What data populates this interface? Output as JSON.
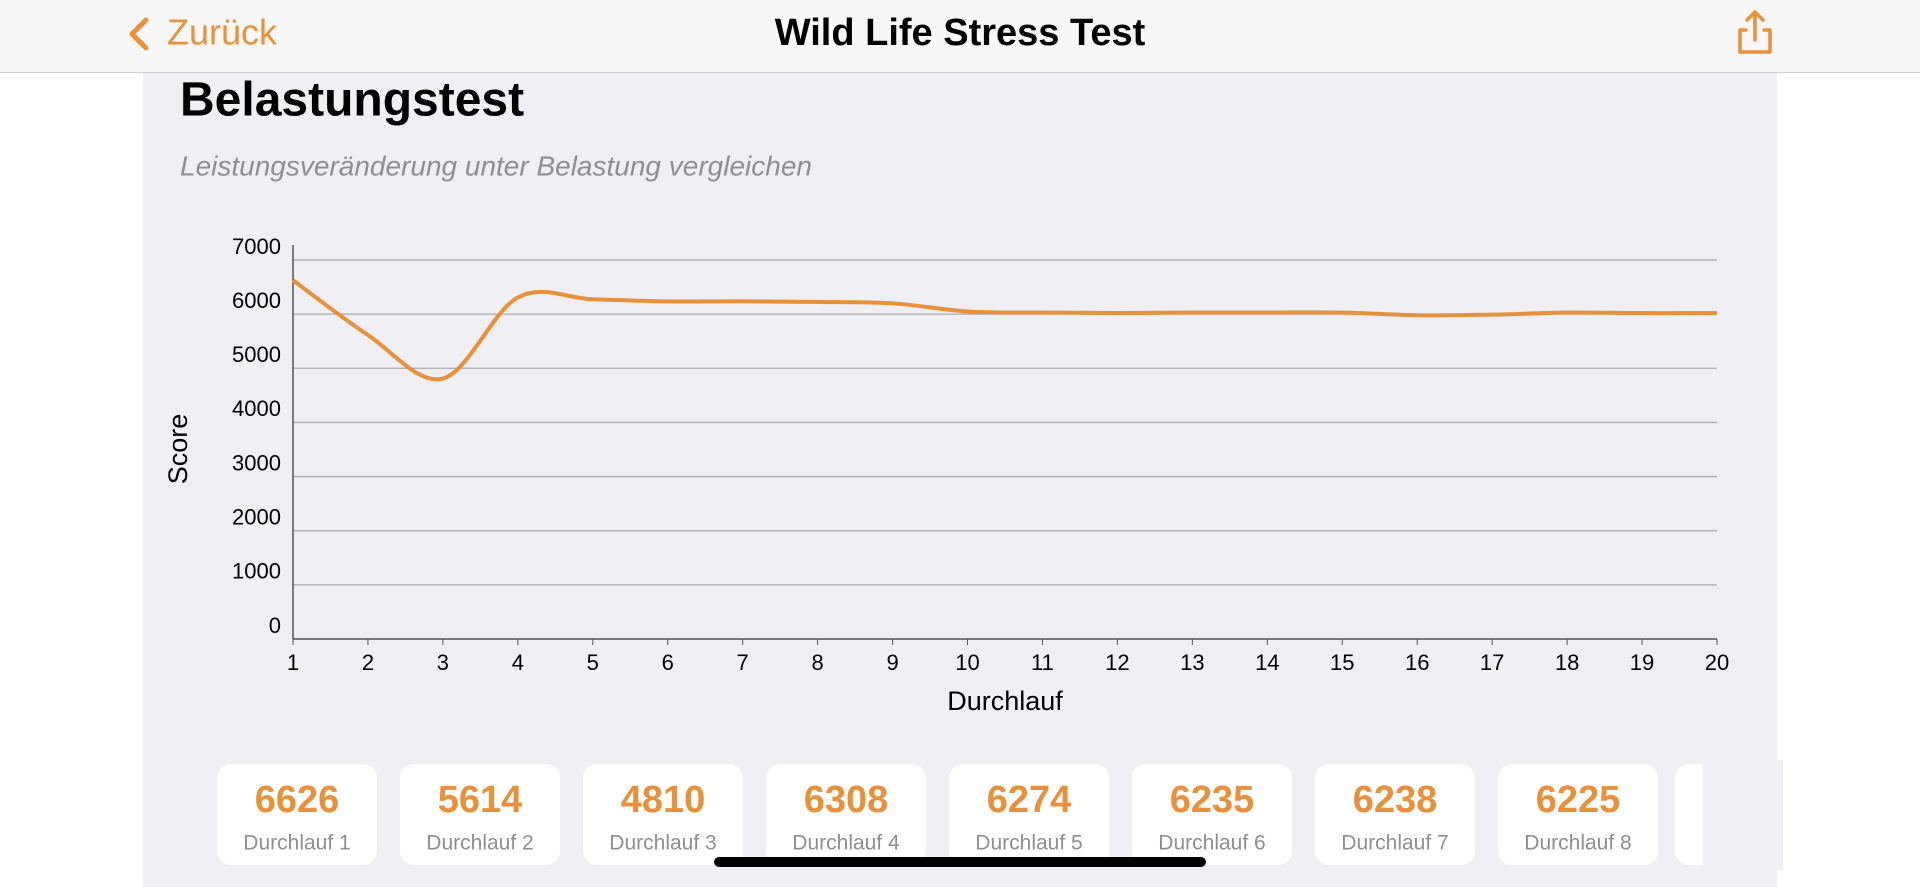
{
  "nav": {
    "back": "Zurück",
    "title": "Wild Life Stress Test"
  },
  "chart_data": {
    "type": "line",
    "title": "Belastungstest",
    "subtitle": "Leistungsveränderung unter Belastung vergleichen",
    "x_label": "Durchlauf",
    "y_label": "Score",
    "x": [
      1,
      2,
      3,
      4,
      5,
      6,
      7,
      8,
      9,
      10,
      11,
      12,
      13,
      14,
      15,
      16,
      17,
      18,
      19,
      20
    ],
    "series": [
      {
        "name": "Score",
        "color": "#e8913a",
        "values": [
          6626,
          5614,
          4810,
          6308,
          6274,
          6235,
          6238,
          6225,
          6200,
          6050,
          6030,
          6020,
          6030,
          6030,
          6030,
          5980,
          5990,
          6030,
          6020,
          6020
        ]
      }
    ],
    "xlim": [
      1,
      20
    ],
    "xticks": [
      1,
      2,
      3,
      4,
      5,
      6,
      7,
      8,
      9,
      10,
      11,
      12,
      13,
      14,
      15,
      16,
      17,
      18,
      19,
      20
    ],
    "ylim": [
      0,
      7000
    ],
    "yticks": [
      0,
      1000,
      2000,
      3000,
      4000,
      5000,
      6000,
      7000
    ],
    "grid": true
  },
  "cards": [
    "Durchlauf 1",
    "Durchlauf 2",
    "Durchlauf 3",
    "Durchlauf 4",
    "Durchlauf 5",
    "Durchlauf 6",
    "Durchlauf 7",
    "Durchlauf 8"
  ]
}
